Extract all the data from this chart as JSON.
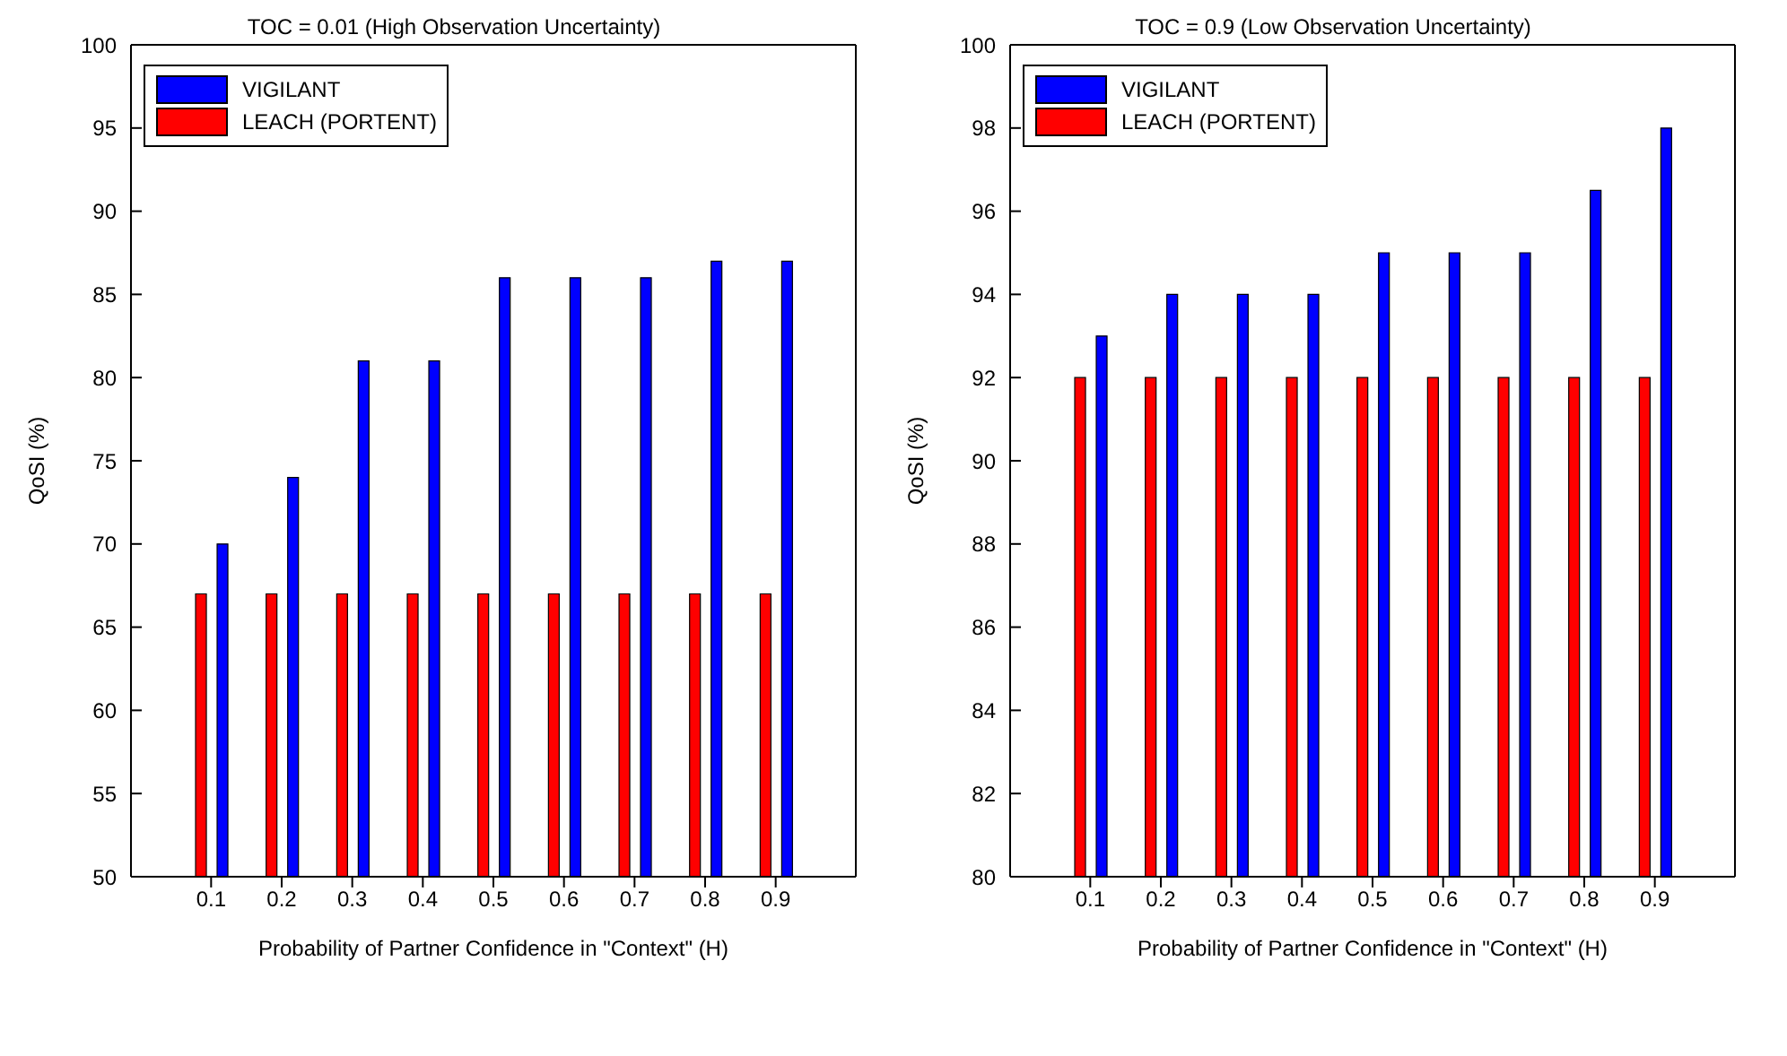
{
  "chart_data": [
    {
      "type": "bar",
      "title": "TOC = 0.01 (High Observation Uncertainty)",
      "xlabel": "Probability of Partner Confidence in \"Context\" (H)",
      "ylabel": "QoSI (%)",
      "categories": [
        "0.1",
        "0.2",
        "0.3",
        "0.4",
        "0.5",
        "0.6",
        "0.7",
        "0.8",
        "0.9"
      ],
      "series": [
        {
          "name": "VIGILANT",
          "color": "#0000ff",
          "values": [
            70,
            74,
            81,
            81,
            86,
            86,
            86,
            87,
            87
          ]
        },
        {
          "name": "LEACH (PORTENT)",
          "color": "#ff0000",
          "values": [
            67,
            67,
            67,
            67,
            67,
            67,
            67,
            67,
            67
          ]
        }
      ],
      "ylim": [
        50,
        100
      ],
      "yticks": [
        50,
        55,
        60,
        65,
        70,
        75,
        80,
        85,
        90,
        95,
        100
      ],
      "grid": false,
      "legend": "top left"
    },
    {
      "type": "bar",
      "title": "TOC = 0.9 (Low Observation Uncertainty)",
      "xlabel": "Probability of Partner Confidence in \"Context\" (H)",
      "ylabel": "QoSI (%)",
      "categories": [
        "0.1",
        "0.2",
        "0.3",
        "0.4",
        "0.5",
        "0.6",
        "0.7",
        "0.8",
        "0.9"
      ],
      "series": [
        {
          "name": "VIGILANT",
          "color": "#0000ff",
          "values": [
            93,
            94,
            94,
            94,
            95,
            95,
            95,
            96.5,
            98
          ]
        },
        {
          "name": "LEACH (PORTENT)",
          "color": "#ff0000",
          "values": [
            92,
            92,
            92,
            92,
            92,
            92,
            92,
            92,
            92
          ]
        }
      ],
      "ylim": [
        80,
        100
      ],
      "yticks": [
        80,
        82,
        84,
        86,
        88,
        90,
        92,
        94,
        96,
        98,
        100
      ],
      "grid": false,
      "legend": "top left"
    }
  ]
}
